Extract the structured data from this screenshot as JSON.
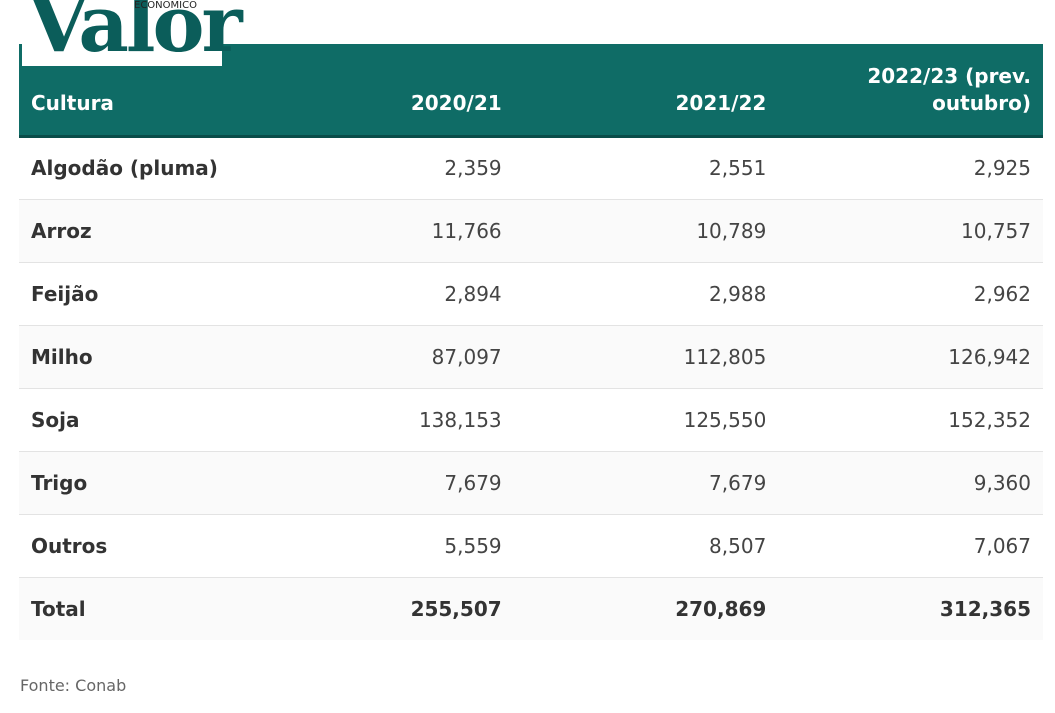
{
  "logo": {
    "brand": "Valor",
    "sub": "ECONÔMICO"
  },
  "chart_data": {
    "type": "table",
    "columns": [
      "Cultura",
      "2020/21",
      "2021/22",
      "2022/23 (prev. outubro)"
    ],
    "rows": [
      {
        "crop": "Algodão (pluma)",
        "values": [
          "2,359",
          "2,551",
          "2,925"
        ]
      },
      {
        "crop": "Arroz",
        "values": [
          "11,766",
          "10,789",
          "10,757"
        ]
      },
      {
        "crop": "Feijão",
        "values": [
          "2,894",
          "2,988",
          "2,962"
        ]
      },
      {
        "crop": "Milho",
        "values": [
          "87,097",
          "112,805",
          "126,942"
        ]
      },
      {
        "crop": "Soja",
        "values": [
          "138,153",
          "125,550",
          "152,352"
        ]
      },
      {
        "crop": "Trigo",
        "values": [
          "7,679",
          "7,679",
          "9,360"
        ]
      },
      {
        "crop": "Outros",
        "values": [
          "5,559",
          "8,507",
          "7,067"
        ]
      }
    ],
    "total": {
      "label": "Total",
      "values": [
        "255,507",
        "270,869",
        "312,365"
      ]
    },
    "source": "Fonte: Conab"
  },
  "colors": {
    "header_bg": "#0f6c66",
    "brand": "#0b5d5a"
  }
}
